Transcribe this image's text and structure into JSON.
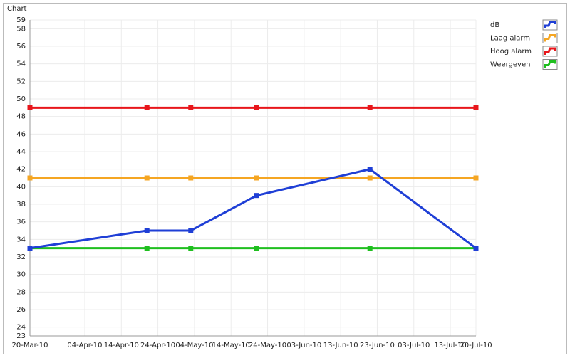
{
  "chart_data": {
    "type": "line",
    "title": "Chart",
    "x": [
      "2010-03-20",
      "2010-04-21",
      "2010-05-03",
      "2010-05-21",
      "2010-06-21",
      "2010-07-20"
    ],
    "series": [
      {
        "name": "dB",
        "color": "#1f3fd6",
        "values": [
          33,
          35,
          35,
          39,
          42,
          33
        ]
      },
      {
        "name": "Laag alarm",
        "color": "#f5a623",
        "values": [
          41,
          41,
          41,
          41,
          41,
          41
        ]
      },
      {
        "name": "Hoog alarm",
        "color": "#e8161b",
        "values": [
          49,
          49,
          49,
          49,
          49,
          49
        ]
      },
      {
        "name": "Weergeven",
        "color": "#1fbf1f",
        "values": [
          33,
          33,
          33,
          33,
          33,
          33
        ]
      }
    ],
    "xlim": [
      "2010-03-20",
      "2010-07-20"
    ],
    "xticks": [
      {
        "value": "2010-03-20",
        "label": "20-Mar-10"
      },
      {
        "value": "2010-04-04",
        "label": "04-Apr-10"
      },
      {
        "value": "2010-04-14",
        "label": "14-Apr-10"
      },
      {
        "value": "2010-04-24",
        "label": "24-Apr-10"
      },
      {
        "value": "2010-05-04",
        "label": "04-May-10"
      },
      {
        "value": "2010-05-14",
        "label": "14-May-10"
      },
      {
        "value": "2010-05-24",
        "label": "24-May-10"
      },
      {
        "value": "2010-06-03",
        "label": "03-Jun-10"
      },
      {
        "value": "2010-06-13",
        "label": "13-Jun-10"
      },
      {
        "value": "2010-06-23",
        "label": "23-Jun-10"
      },
      {
        "value": "2010-07-03",
        "label": "03-Jul-10"
      },
      {
        "value": "2010-07-13",
        "label": "13-Jul-10"
      },
      {
        "value": "2010-07-20",
        "label": "20-Jul-10"
      }
    ],
    "ylim": [
      23,
      59
    ],
    "yticks": [
      23,
      24,
      26,
      28,
      30,
      32,
      34,
      36,
      38,
      40,
      42,
      44,
      46,
      48,
      50,
      52,
      54,
      56,
      58,
      59
    ],
    "grid": true,
    "legend": "right"
  }
}
